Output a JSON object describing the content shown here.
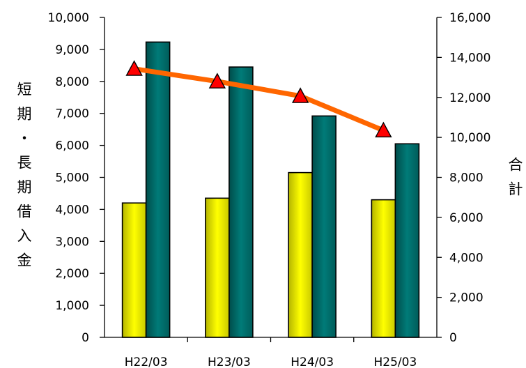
{
  "chart_data": {
    "type": "bar",
    "categories": [
      "H22/03",
      "H23/03",
      "H24/03",
      "H25/03"
    ],
    "series": [
      {
        "values": [
          4200,
          4350,
          5150,
          4300
        ],
        "color": "#ffff00",
        "axis": "left",
        "kind": "bar"
      },
      {
        "values": [
          9230,
          8450,
          6920,
          6050
        ],
        "color": "#007b78",
        "axis": "left",
        "kind": "bar"
      },
      {
        "values": [
          13430,
          12800,
          12070,
          10350
        ],
        "color": "#ff6600",
        "marker_color": "#ff0000",
        "marker": "triangle",
        "axis": "right",
        "kind": "line"
      }
    ],
    "ylabel": "短期・長期借入金",
    "y2label": "合計",
    "ylim": [
      0,
      10000
    ],
    "y2lim": [
      0,
      16000
    ],
    "yticks": [
      "0",
      "1,000",
      "2,000",
      "3,000",
      "4,000",
      "5,000",
      "6,000",
      "7,000",
      "8,000",
      "9,000",
      "10,000"
    ],
    "y2ticks": [
      "0",
      "2,000",
      "4,000",
      "6,000",
      "8,000",
      "10,000",
      "12,000",
      "14,000",
      "16,000"
    ],
    "grid": false,
    "legend": "none"
  }
}
